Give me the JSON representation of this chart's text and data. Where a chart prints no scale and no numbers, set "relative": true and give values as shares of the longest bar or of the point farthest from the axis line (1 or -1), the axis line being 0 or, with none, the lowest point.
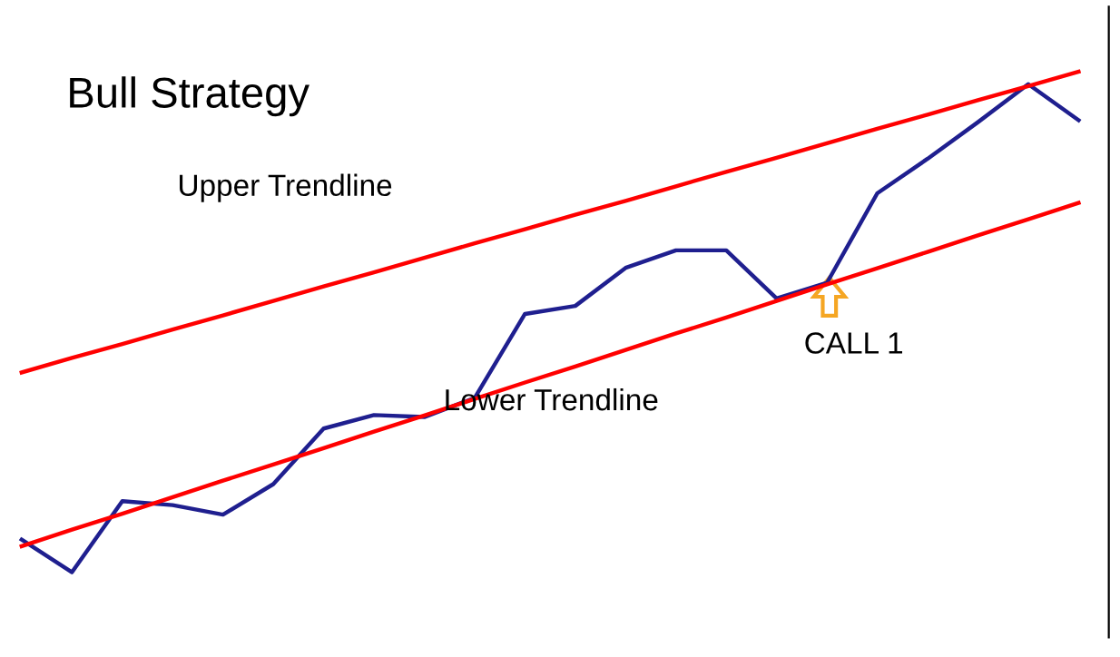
{
  "chart_data": {
    "type": "line",
    "title": "Bull Strategy",
    "relative": true,
    "categories": [
      null,
      null,
      null,
      null,
      null,
      null,
      null,
      null,
      null,
      null,
      null,
      null,
      null,
      null,
      null,
      null,
      null,
      null,
      null,
      null,
      null,
      null
    ],
    "series": [
      {
        "color": "#1f1f8f",
        "values": [
          0.065,
          0,
          0.142,
          0.134,
          0.115,
          0.176,
          0.287,
          0.314,
          0.31,
          0.348,
          0.516,
          0.532,
          0.608,
          0.643,
          0.643,
          0.547,
          0.578,
          0.757,
          0.826,
          0.899,
          0.975,
          0.903
        ]
      },
      {
        "type": "line",
        "name": "Upper Trendline",
        "color": "#ff0000",
        "values": [
          0.399,
          0.428,
          0.456,
          0.485,
          0.513,
          0.542,
          0.571,
          0.599,
          0.628,
          0.657,
          0.685,
          0.714,
          0.742,
          0.771,
          0.8,
          0.828,
          0.857,
          0.886,
          0.914,
          0.943,
          0.971,
          1.0
        ]
      },
      {
        "type": "line",
        "name": "Lower Trendline",
        "color": "#ff0000",
        "values": [
          0.052,
          0.085,
          0.117,
          0.15,
          0.183,
          0.215,
          0.248,
          0.281,
          0.313,
          0.346,
          0.379,
          0.411,
          0.444,
          0.477,
          0.509,
          0.542,
          0.575,
          0.607,
          0.64,
          0.673,
          0.705,
          0.738
        ]
      }
    ],
    "annotations": [
      "CALL 1"
    ]
  }
}
